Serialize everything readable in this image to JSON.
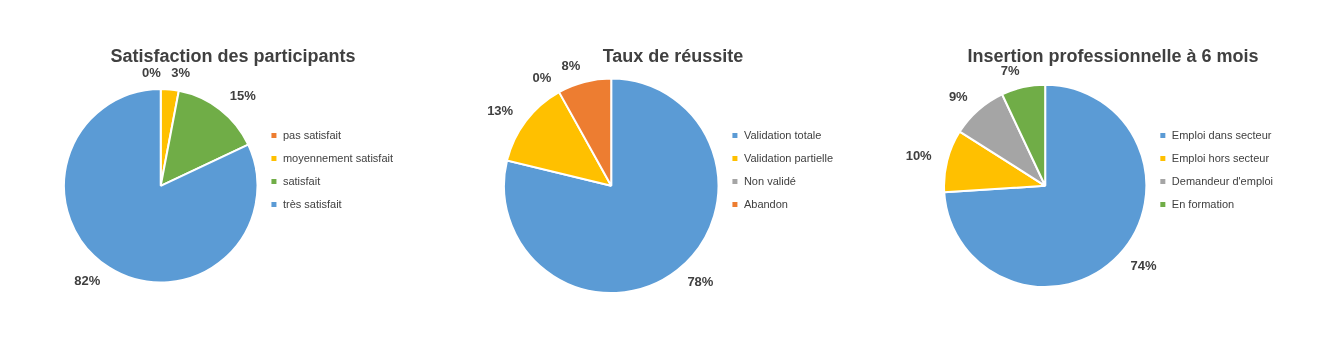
{
  "chart_data": [
    {
      "type": "pie",
      "title": "Satisfaction des participants",
      "categories": [
        "pas satisfait",
        "moyennement satisfait",
        "satisfait",
        "très satisfait"
      ],
      "values": [
        0,
        3,
        15,
        82
      ],
      "colors": [
        "#ed7d31",
        "#ffc000",
        "#70ad47",
        "#5b9bd5"
      ],
      "value_labels": [
        "0%",
        "3%",
        "15%",
        "82%"
      ],
      "legend": "right"
    },
    {
      "type": "pie",
      "title": "Taux de réussite",
      "categories": [
        "Validation totale",
        "Validation partielle",
        "Non validé",
        "Abandon"
      ],
      "values": [
        78,
        13,
        0,
        8
      ],
      "colors": [
        "#5b9bd5",
        "#ffc000",
        "#a5a5a5",
        "#ed7d31"
      ],
      "value_labels": [
        "78%",
        "13%",
        "0%",
        "8%"
      ],
      "legend": "right"
    },
    {
      "type": "pie",
      "title": "Insertion professionnelle à 6 mois",
      "categories": [
        "Emploi dans secteur",
        "Emploi hors secteur",
        "Demandeur d'emploi",
        "En formation"
      ],
      "values": [
        74,
        10,
        9,
        7
      ],
      "colors": [
        "#5b9bd5",
        "#ffc000",
        "#a5a5a5",
        "#70ad47"
      ],
      "value_labels": [
        "74%",
        "10%",
        "9%",
        "7%"
      ],
      "legend": "right"
    }
  ]
}
